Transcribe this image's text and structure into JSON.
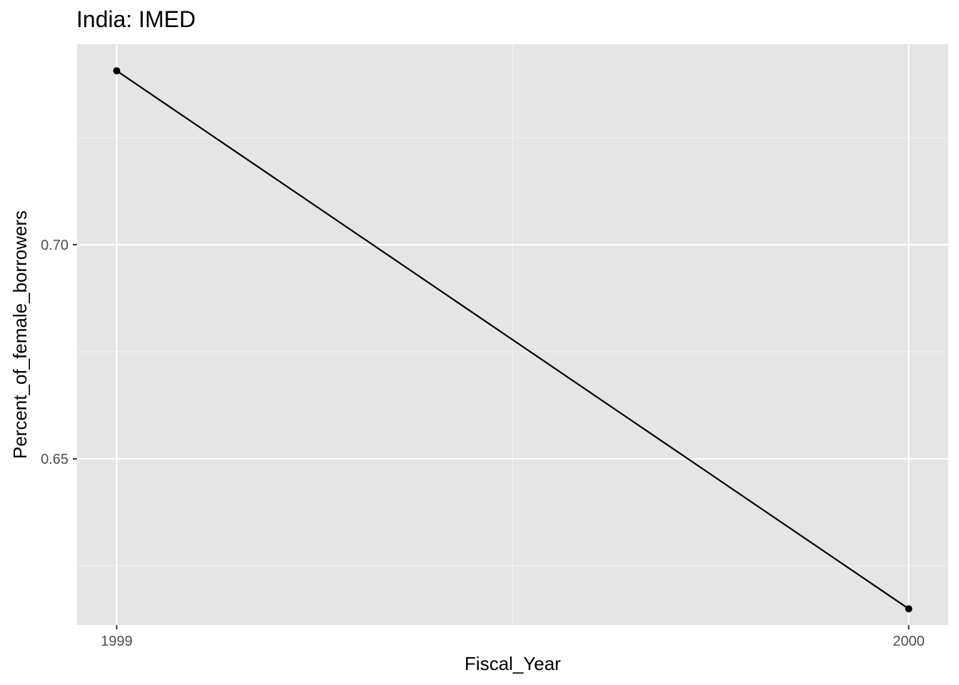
{
  "chart_data": {
    "type": "line",
    "title": "India:  IMED",
    "xlabel": "Fiscal_Year",
    "ylabel": "Percent_of_female_borrowers",
    "x": [
      1999,
      2000
    ],
    "series": [
      {
        "name": "IMED",
        "values": [
          0.7406,
          0.615
        ]
      }
    ],
    "xlim": [
      1998.95,
      2000.05
    ],
    "ylim": [
      0.6112,
      0.7468
    ],
    "x_ticks": [
      1999,
      2000
    ],
    "x_tick_labels": [
      "1999",
      "2000"
    ],
    "y_ticks": [
      0.65,
      0.7
    ],
    "y_tick_labels": [
      "0.65",
      "0.70"
    ],
    "x_minor_ticks": [
      1999.5
    ],
    "y_minor_ticks": [
      0.625,
      0.675,
      0.725
    ],
    "grid": true,
    "colors": {
      "panel_background": "#e5e5e5",
      "grid_major": "#ffffff",
      "grid_minor": "#f2f2f2",
      "line": "#000000",
      "point": "#000000",
      "tick_text": "#4d4d4d",
      "tick_mark": "#333333"
    }
  }
}
